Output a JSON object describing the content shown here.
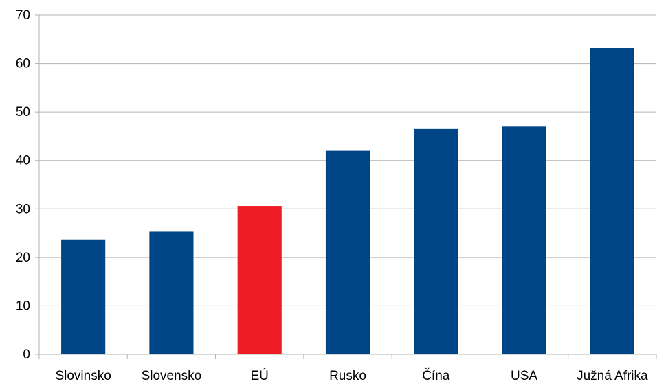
{
  "chart_data": {
    "type": "bar",
    "title": "",
    "xlabel": "",
    "ylabel": "",
    "categories": [
      "Slovinsko",
      "Slovensko",
      "EÚ",
      "Rusko",
      "Čína",
      "USA",
      "Južná Afrika"
    ],
    "values": [
      23.7,
      25.3,
      30.6,
      42.0,
      46.5,
      47.0,
      63.2
    ],
    "ylim": [
      0,
      70
    ],
    "yticks": [
      0,
      10,
      20,
      30,
      40,
      50,
      60,
      70
    ],
    "grid": "horizontal",
    "legend": "none",
    "colors": {
      "bar_default": "#004586",
      "bar_highlight": "#ee1c25",
      "gridline": "#b3b3b3",
      "axis": "#b3b3b3"
    },
    "highlight_category": "EÚ"
  }
}
